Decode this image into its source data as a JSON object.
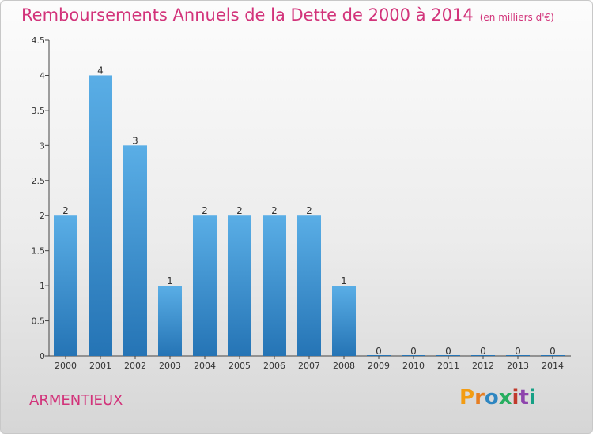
{
  "header": {
    "title": "Remboursements Annuels de la Dette de 2000 à 2014",
    "subtitle": "(en milliers d'€)"
  },
  "footer": {
    "commune": "ARMENTIEUX",
    "logo_text": "Proxiti"
  },
  "colors": {
    "title": "#d2337a",
    "bar_top": "#5aaee6",
    "bar_bottom": "#2574b5",
    "logo_letters": [
      "#f39c12",
      "#e67e22",
      "#2e86c1",
      "#27ae60",
      "#c0392b",
      "#8e44ad",
      "#16a085"
    ]
  },
  "chart_data": {
    "type": "bar",
    "categories": [
      "2000",
      "2001",
      "2002",
      "2003",
      "2004",
      "2005",
      "2006",
      "2007",
      "2008",
      "2009",
      "2010",
      "2011",
      "2012",
      "2013",
      "2014"
    ],
    "values": [
      2,
      4,
      3,
      1,
      2,
      2,
      2,
      2,
      1,
      0,
      0,
      0,
      0,
      0,
      0
    ],
    "data_labels": [
      "2",
      "4",
      "3",
      "1",
      "2",
      "2",
      "2",
      "2",
      "1",
      "0",
      "0",
      "0",
      "0",
      "0",
      "0"
    ],
    "yticks": [
      "0",
      "0.5",
      "1",
      "1.5",
      "2",
      "2.5",
      "3",
      "3.5",
      "4",
      "4.5"
    ],
    "ylim": [
      0,
      4.5
    ],
    "grid": false,
    "legend": "none"
  }
}
